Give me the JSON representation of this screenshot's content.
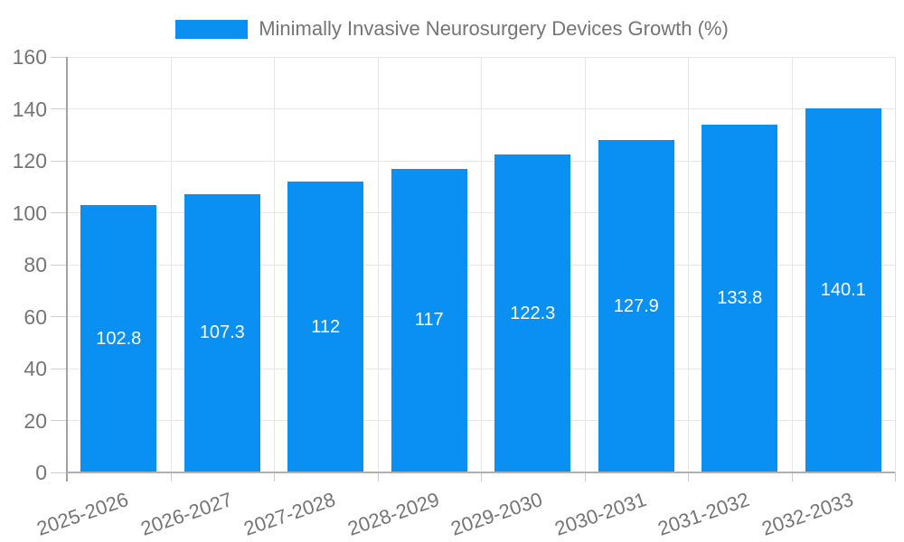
{
  "chart_data": {
    "type": "bar",
    "title": "Minimally Invasive Neurosurgery Devices Growth (%)",
    "legend": {
      "position": "top-center",
      "entries": [
        {
          "label": "Minimally Invasive Neurosurgery Devices Growth (%)",
          "color": "#0a90f2"
        }
      ]
    },
    "categories": [
      "2025-2026",
      "2026-2027",
      "2027-2028",
      "2028-2029",
      "2029-2030",
      "2030-2031",
      "2031-2032",
      "2032-2033"
    ],
    "values": [
      102.8,
      107.3,
      112,
      117,
      122.3,
      127.9,
      133.8,
      140.1
    ],
    "value_labels": [
      "102.8",
      "107.3",
      "112",
      "117",
      "122.3",
      "127.9",
      "133.8",
      "140.1"
    ],
    "xlabel": "",
    "ylabel": "",
    "ylim": [
      0,
      160
    ],
    "yticks": [
      0,
      20,
      40,
      60,
      80,
      100,
      120,
      140,
      160
    ],
    "grid": true,
    "x_label_rotation_deg": -19,
    "colors": {
      "bar": "#0a90f2",
      "value_label": "#ffffff",
      "axis_label": "#757575",
      "legend_text": "#757575",
      "gridline": "#e6e6e6",
      "tick": "#cccccc",
      "y_axis_line": "#a2a2a2",
      "x_axis_line": "#b0b0b0",
      "background": "#ffffff"
    }
  }
}
